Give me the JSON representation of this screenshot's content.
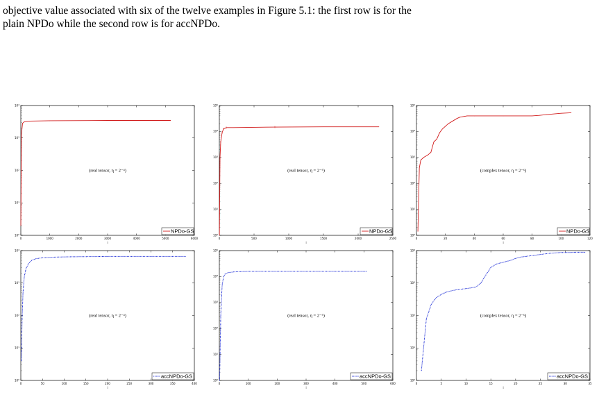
{
  "caption": {
    "line1": "objective value associated with six of the twelve examples in Figure 5.1: the first row is for the",
    "line2": "plain NPDo while the second row is for accNPDo."
  },
  "colors": {
    "npdo": "#d11a1a",
    "accnpdo": "#1f2fd6"
  },
  "chart_data": [
    {
      "type": "line",
      "annotation": "(real tensor, η = 2⁻⁴)",
      "legend": "NPDo-GS",
      "style": "solid",
      "color": "#d11a1a",
      "xlim": [
        0,
        6000
      ],
      "xticks": [
        0,
        1000,
        2000,
        3000,
        4000,
        5000,
        6000
      ],
      "xlabel": "i",
      "ylog": true,
      "ydecades": 4,
      "x": [
        1,
        20,
        60,
        120,
        300,
        1000,
        3000,
        5180
      ],
      "y": [
        0.3,
        3.1,
        3.45,
        3.5,
        3.52,
        3.53,
        3.54,
        3.54
      ]
    },
    {
      "type": "line",
      "annotation": "(real tensor, η = 2⁻⁶)",
      "legend": "NPDo-GS",
      "style": "solid",
      "color": "#d11a1a",
      "xlim": [
        0,
        2500
      ],
      "xticks": [
        0,
        500,
        1000,
        1500,
        2000,
        2500
      ],
      "xlabel": "i",
      "ylog": true,
      "ydecades": 5,
      "x": [
        1,
        10,
        20,
        40,
        60,
        100,
        200,
        800,
        1500,
        2300
      ],
      "y": [
        0.0,
        3.0,
        3.6,
        3.95,
        4.1,
        4.15,
        4.15,
        4.17,
        4.18,
        4.18
      ],
      "markers_x": [
        20,
        40,
        60,
        100,
        800
      ]
    },
    {
      "type": "line",
      "annotation": "(complex tensor, η = 2⁻⁶)",
      "legend": "NPDo-GS",
      "style": "solid",
      "color": "#d11a1a",
      "xlim": [
        0,
        120
      ],
      "xticks": [
        0,
        20,
        40,
        60,
        80,
        100,
        120
      ],
      "xlabel": "i",
      "ylog": true,
      "ydecades": 5,
      "x": [
        1,
        2,
        3,
        5,
        8,
        10,
        12,
        14,
        16,
        18,
        20,
        22,
        25,
        28,
        30,
        35,
        40,
        60,
        80,
        85,
        90,
        100,
        107
      ],
      "y": [
        0.15,
        2.6,
        2.9,
        3.0,
        3.1,
        3.2,
        3.6,
        3.7,
        3.95,
        4.1,
        4.2,
        4.3,
        4.4,
        4.5,
        4.55,
        4.6,
        4.6,
        4.6,
        4.6,
        4.62,
        4.65,
        4.7,
        4.72
      ]
    },
    {
      "type": "line",
      "annotation": "(real tensor, η = 2⁻⁴)",
      "legend": "accNPDo-GS",
      "style": "dotted",
      "color": "#1f2fd6",
      "xlim": [
        0,
        400
      ],
      "xticks": [
        0,
        50,
        100,
        150,
        200,
        250,
        300,
        350,
        400
      ],
      "xlabel": "i",
      "ylog": true,
      "ydecades": 4,
      "x": [
        1,
        3,
        5,
        8,
        12,
        18,
        25,
        35,
        50,
        80,
        120,
        200,
        300,
        380
      ],
      "y": [
        0.6,
        1.9,
        2.7,
        3.2,
        3.45,
        3.6,
        3.7,
        3.75,
        3.78,
        3.8,
        3.81,
        3.82,
        3.82,
        3.82
      ]
    },
    {
      "type": "line",
      "annotation": "(real tensor, η = 2⁻⁶)",
      "legend": "accNPDo-GS",
      "style": "dotted",
      "color": "#1f2fd6",
      "xlim": [
        0,
        600
      ],
      "xticks": [
        0,
        100,
        200,
        300,
        400,
        500,
        600
      ],
      "xlabel": "i",
      "ylog": true,
      "ydecades": 5,
      "x": [
        1,
        5,
        8,
        10,
        15,
        20,
        30,
        50,
        100,
        200,
        300,
        400,
        510
      ],
      "y": [
        0.0,
        2.5,
        3.3,
        3.7,
        4.0,
        4.1,
        4.15,
        4.18,
        4.2,
        4.2,
        4.2,
        4.2,
        4.2
      ]
    },
    {
      "type": "line",
      "annotation": "(complex tensor, η = 2⁻⁶)",
      "legend": "accNPDo-GS",
      "style": "dotted",
      "color": "#1f2fd6",
      "xlim": [
        0,
        35
      ],
      "xticks": [
        0,
        5,
        10,
        15,
        20,
        25,
        30,
        35
      ],
      "xlabel": "i",
      "ylog": true,
      "ydecades": 4,
      "x": [
        1,
        2,
        3,
        4,
        5,
        6,
        7,
        8,
        9,
        10,
        11,
        12,
        13,
        14,
        15,
        16,
        17,
        18,
        19,
        20,
        21,
        22,
        23,
        24,
        25,
        26,
        27,
        28,
        29,
        30,
        31,
        32,
        33,
        34
      ],
      "y": [
        0.3,
        1.9,
        2.35,
        2.55,
        2.65,
        2.72,
        2.76,
        2.79,
        2.81,
        2.83,
        2.85,
        2.88,
        3.0,
        3.25,
        3.48,
        3.58,
        3.62,
        3.66,
        3.7,
        3.76,
        3.8,
        3.82,
        3.84,
        3.86,
        3.88,
        3.9,
        3.92,
        3.93,
        3.94,
        3.94,
        3.94,
        3.95,
        3.95,
        3.95
      ]
    }
  ]
}
